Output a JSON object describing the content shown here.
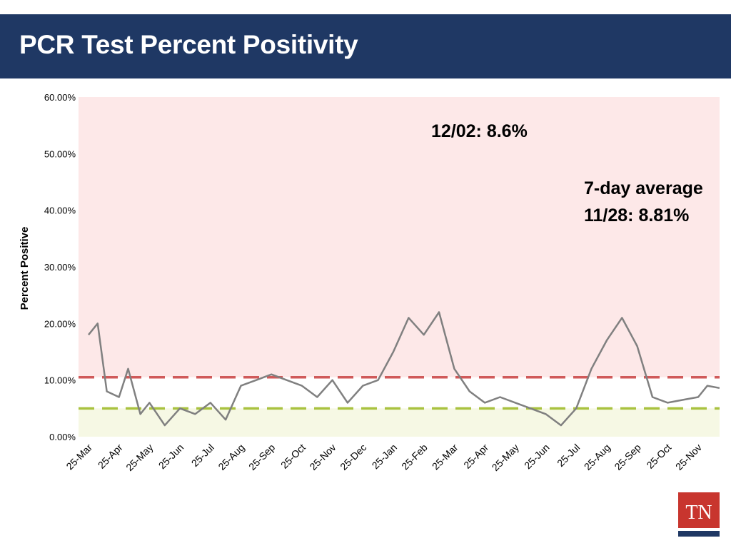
{
  "header": {
    "title": "PCR Test Percent Positivity"
  },
  "colors": {
    "header_bg": "#1f3864",
    "high_zone": "#fde8e8",
    "low_zone": "#f6f8e4",
    "series_line": "#808080",
    "red_threshold": "#d05a5a",
    "green_threshold": "#a9c23f",
    "logo_red": "#c8352e",
    "logo_blue": "#1f3864"
  },
  "logo": {
    "text": "TN"
  },
  "chart_data": {
    "type": "line",
    "title": "",
    "xlabel": "",
    "ylabel": "Percent Positive",
    "ylim": [
      0,
      60
    ],
    "yticks": [
      "0.00%",
      "10.00%",
      "20.00%",
      "30.00%",
      "40.00%",
      "50.00%",
      "60.00%"
    ],
    "xticks": [
      "25-Mar",
      "25-Apr",
      "25-May",
      "25-Jun",
      "25-Jul",
      "25-Aug",
      "25-Sep",
      "25-Oct",
      "25-Nov",
      "25-Dec",
      "25-Jan",
      "25-Feb",
      "25-Mar",
      "25-Apr",
      "25-May",
      "25-Jun",
      "25-Jul",
      "25-Aug",
      "25-Sep",
      "25-Oct",
      "25-Nov"
    ],
    "grid": false,
    "thresholds": [
      {
        "value": 10.5,
        "color": "#d05a5a",
        "style": "dashed"
      },
      {
        "value": 5,
        "color": "#a9c23f",
        "style": "dashed"
      }
    ],
    "shaded_bands": [
      {
        "from": 10.5,
        "to": 60,
        "color": "#fde8e8"
      },
      {
        "from": 0,
        "to": 5,
        "color": "#f6f8e4"
      }
    ],
    "annotations": [
      {
        "lines": [
          "12/02: 8.6%"
        ]
      },
      {
        "lines": [
          "7-day average",
          "11/28: 8.81%"
        ]
      }
    ],
    "series": [
      {
        "x": [
          0,
          0.3,
          0.6,
          1.0,
          1.3,
          1.7,
          2.0,
          2.5,
          3.0,
          3.5,
          4.0,
          4.5,
          5.0,
          5.5,
          6.0,
          6.5,
          7.0,
          7.5,
          8.0,
          8.5,
          9.0,
          9.5,
          10.0,
          10.5,
          11.0,
          11.5,
          12.0,
          12.5,
          13.0,
          13.5,
          14.0,
          14.5,
          15.0,
          15.5,
          16.0,
          16.5,
          17.0,
          17.5,
          18.0,
          18.5,
          19.0,
          19.5,
          20.0,
          20.3,
          20.7
        ],
        "values": [
          18,
          20,
          8,
          7,
          12,
          4,
          6,
          2,
          5,
          4,
          6,
          3,
          9,
          10,
          11,
          10,
          9,
          7,
          10,
          6,
          9,
          10,
          15,
          21,
          18,
          22,
          12,
          8,
          6,
          7,
          6,
          5,
          4,
          2,
          5,
          12,
          17,
          21,
          16,
          7,
          6,
          6.5,
          7,
          9,
          8.6
        ]
      }
    ]
  }
}
